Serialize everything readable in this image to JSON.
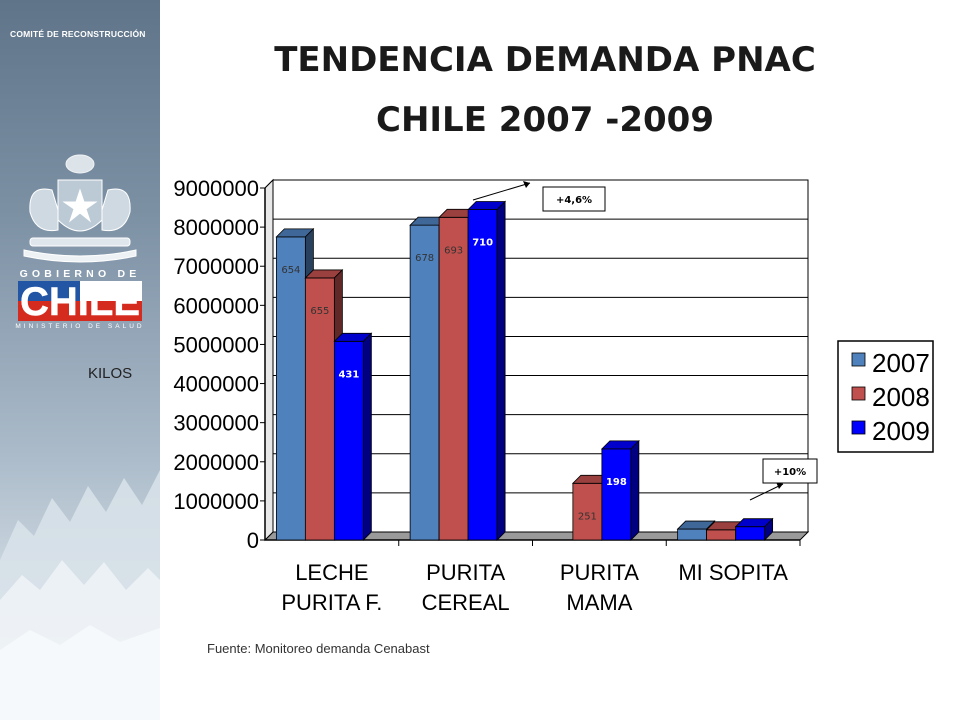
{
  "sidebar": {
    "org_label": "COMITÉ DE RECONSTRUCCIÓN",
    "gov_line": "GOBIERNO DE",
    "gov_name": "CHILE",
    "ministry": "MINISTERIO DE SALUD",
    "crest_icon": "chile-coat-of-arms-icon"
  },
  "header": {
    "title_line1": "TENDENCIA DEMANDA PNAC",
    "title_line2": "CHILE 2007 -2009"
  },
  "source_note": "Fuente: Monitoreo demanda Cenabast",
  "chart_data": {
    "type": "bar",
    "ylabel": "KILOS",
    "ylim": [
      0,
      9000000
    ],
    "yticks": [
      0,
      1000000,
      2000000,
      3000000,
      4000000,
      5000000,
      6000000,
      7000000,
      8000000,
      9000000
    ],
    "categories": [
      [
        "LECHE",
        "PURITA F."
      ],
      [
        "PURITA",
        "CEREAL"
      ],
      [
        "PURITA",
        "MAMA"
      ],
      [
        "MI SOPITA"
      ]
    ],
    "series": [
      {
        "name": "2007",
        "color": "#4f81bd",
        "values": [
          7750000,
          8050000,
          0,
          280000
        ],
        "labels": [
          "654",
          "678",
          "",
          ""
        ]
      },
      {
        "name": "2008",
        "color": "#c0504d",
        "values": [
          6700000,
          8250000,
          1450000,
          260000
        ],
        "labels": [
          "655",
          "693",
          "251",
          ""
        ]
      },
      {
        "name": "2009",
        "color": "#0000ff",
        "values": [
          5080000,
          8450000,
          2330000,
          340000
        ],
        "labels": [
          "431",
          "710",
          "198",
          ""
        ]
      }
    ],
    "legend_position": "right",
    "grid": true,
    "annotations": [
      {
        "text": "+4,6%",
        "category": 1
      },
      {
        "text": "+10%",
        "category": 3
      }
    ]
  }
}
